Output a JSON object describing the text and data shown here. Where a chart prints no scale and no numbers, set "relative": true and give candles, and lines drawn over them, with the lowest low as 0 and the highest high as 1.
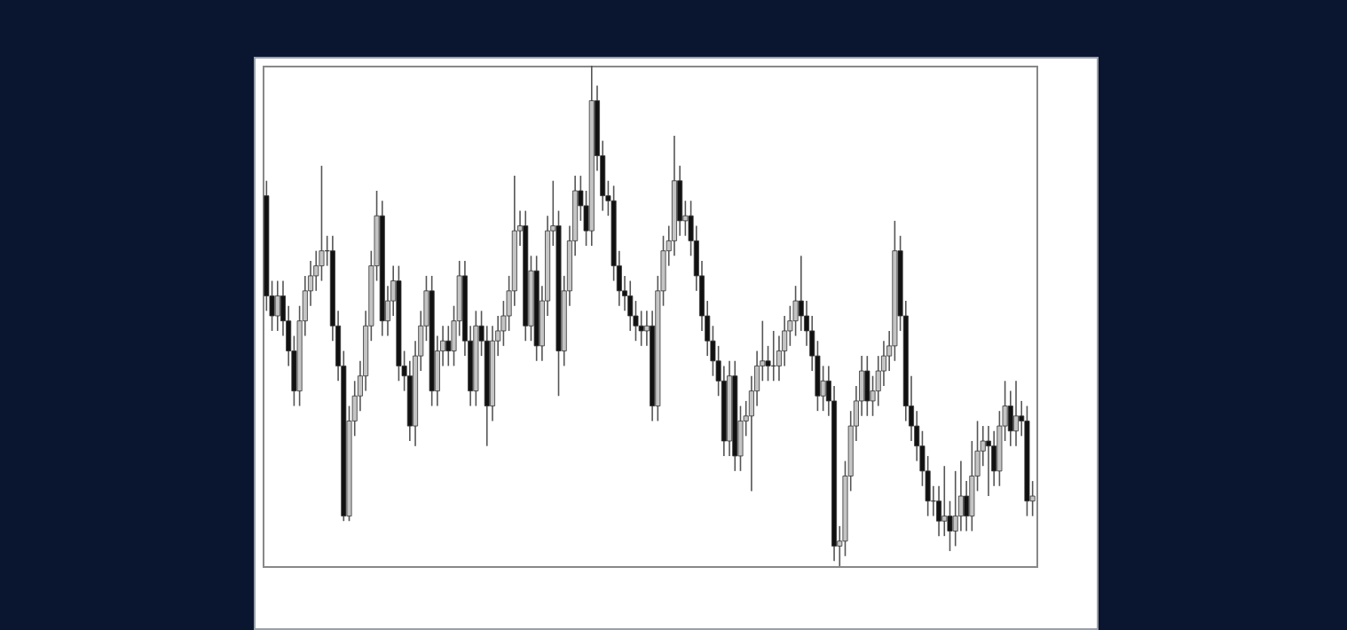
{
  "chart_data": {
    "type": "candlestick",
    "relative": true,
    "categories": [
      null,
      null,
      null,
      null,
      null,
      null,
      null,
      null,
      null,
      null,
      null,
      null,
      null,
      null,
      null,
      null,
      null,
      null,
      null,
      null,
      null,
      null,
      null,
      null,
      null,
      null,
      null,
      null,
      null,
      null,
      null,
      null,
      null,
      null,
      null,
      null,
      null,
      null,
      null,
      null,
      null,
      null,
      null,
      null,
      null,
      null,
      null,
      null,
      null,
      null,
      null,
      null,
      null,
      null,
      null,
      null,
      null,
      null,
      null,
      null,
      null,
      null,
      null,
      null,
      null,
      null,
      null,
      null,
      null,
      null,
      null,
      null,
      null,
      null,
      null,
      null,
      null,
      null,
      null,
      null,
      null,
      null,
      null,
      null,
      null,
      null,
      null,
      null,
      null,
      null,
      null,
      null,
      null,
      null,
      null,
      null,
      null,
      null,
      null,
      null,
      null,
      null,
      null,
      null,
      null,
      null,
      null,
      null,
      null,
      null,
      null,
      null,
      null,
      null,
      null,
      null,
      null,
      null,
      null,
      null,
      null,
      null,
      null,
      null,
      null,
      null,
      null,
      null,
      null,
      null,
      null,
      null,
      null,
      null,
      null,
      null,
      null,
      null,
      null,
      null
    ],
    "ohlc": [
      [
        0.74,
        0.77,
        0.51,
        0.54
      ],
      [
        0.54,
        0.57,
        0.47,
        0.5
      ],
      [
        0.5,
        0.57,
        0.47,
        0.54
      ],
      [
        0.54,
        0.57,
        0.46,
        0.49
      ],
      [
        0.49,
        0.52,
        0.4,
        0.43
      ],
      [
        0.43,
        0.46,
        0.32,
        0.35
      ],
      [
        0.35,
        0.52,
        0.32,
        0.49
      ],
      [
        0.49,
        0.58,
        0.46,
        0.55
      ],
      [
        0.55,
        0.61,
        0.52,
        0.58
      ],
      [
        0.58,
        0.63,
        0.55,
        0.6
      ],
      [
        0.6,
        0.8,
        0.57,
        0.63
      ],
      [
        0.63,
        0.66,
        0.6,
        0.63
      ],
      [
        0.63,
        0.66,
        0.45,
        0.48
      ],
      [
        0.48,
        0.51,
        0.37,
        0.4
      ],
      [
        0.4,
        0.43,
        0.09,
        0.1
      ],
      [
        0.1,
        0.32,
        0.09,
        0.29
      ],
      [
        0.29,
        0.37,
        0.26,
        0.34
      ],
      [
        0.34,
        0.41,
        0.31,
        0.38
      ],
      [
        0.38,
        0.51,
        0.35,
        0.48
      ],
      [
        0.48,
        0.63,
        0.45,
        0.6
      ],
      [
        0.6,
        0.75,
        0.57,
        0.7
      ],
      [
        0.7,
        0.73,
        0.46,
        0.49
      ],
      [
        0.49,
        0.56,
        0.46,
        0.53
      ],
      [
        0.53,
        0.6,
        0.5,
        0.57
      ],
      [
        0.57,
        0.6,
        0.37,
        0.4
      ],
      [
        0.4,
        0.43,
        0.35,
        0.38
      ],
      [
        0.38,
        0.41,
        0.25,
        0.28
      ],
      [
        0.28,
        0.45,
        0.24,
        0.42
      ],
      [
        0.42,
        0.51,
        0.39,
        0.48
      ],
      [
        0.48,
        0.58,
        0.45,
        0.55
      ],
      [
        0.55,
        0.58,
        0.32,
        0.35
      ],
      [
        0.35,
        0.46,
        0.32,
        0.43
      ],
      [
        0.43,
        0.48,
        0.4,
        0.45
      ],
      [
        0.45,
        0.48,
        0.4,
        0.43
      ],
      [
        0.43,
        0.52,
        0.4,
        0.49
      ],
      [
        0.49,
        0.61,
        0.46,
        0.58
      ],
      [
        0.58,
        0.61,
        0.42,
        0.45
      ],
      [
        0.45,
        0.48,
        0.32,
        0.35
      ],
      [
        0.35,
        0.51,
        0.32,
        0.48
      ],
      [
        0.48,
        0.51,
        0.42,
        0.45
      ],
      [
        0.45,
        0.48,
        0.24,
        0.32
      ],
      [
        0.32,
        0.48,
        0.29,
        0.45
      ],
      [
        0.45,
        0.5,
        0.42,
        0.47
      ],
      [
        0.47,
        0.53,
        0.44,
        0.5
      ],
      [
        0.5,
        0.58,
        0.47,
        0.55
      ],
      [
        0.55,
        0.78,
        0.52,
        0.67
      ],
      [
        0.67,
        0.71,
        0.64,
        0.68
      ],
      [
        0.68,
        0.71,
        0.45,
        0.48
      ],
      [
        0.48,
        0.62,
        0.45,
        0.59
      ],
      [
        0.59,
        0.62,
        0.41,
        0.44
      ],
      [
        0.44,
        0.56,
        0.41,
        0.53
      ],
      [
        0.53,
        0.7,
        0.5,
        0.67
      ],
      [
        0.67,
        0.77,
        0.64,
        0.68
      ],
      [
        0.68,
        0.71,
        0.34,
        0.43
      ],
      [
        0.43,
        0.58,
        0.4,
        0.55
      ],
      [
        0.55,
        0.68,
        0.52,
        0.65
      ],
      [
        0.65,
        0.78,
        0.62,
        0.75
      ],
      [
        0.75,
        0.78,
        0.69,
        0.72
      ],
      [
        0.72,
        0.75,
        0.64,
        0.67
      ],
      [
        0.67,
        1,
        0.64,
        0.93
      ],
      [
        0.93,
        0.96,
        0.79,
        0.82
      ],
      [
        0.82,
        0.85,
        0.71,
        0.74
      ],
      [
        0.74,
        0.77,
        0.7,
        0.73
      ],
      [
        0.73,
        0.76,
        0.57,
        0.6
      ],
      [
        0.6,
        0.63,
        0.52,
        0.55
      ],
      [
        0.55,
        0.58,
        0.51,
        0.54
      ],
      [
        0.54,
        0.57,
        0.47,
        0.5
      ],
      [
        0.5,
        0.53,
        0.45,
        0.48
      ],
      [
        0.48,
        0.51,
        0.44,
        0.47
      ],
      [
        0.47,
        0.51,
        0.44,
        0.48
      ],
      [
        0.48,
        0.51,
        0.29,
        0.32
      ],
      [
        0.32,
        0.58,
        0.29,
        0.55
      ],
      [
        0.55,
        0.66,
        0.52,
        0.63
      ],
      [
        0.63,
        0.68,
        0.6,
        0.65
      ],
      [
        0.65,
        0.86,
        0.62,
        0.77
      ],
      [
        0.77,
        0.8,
        0.66,
        0.69
      ],
      [
        0.69,
        0.73,
        0.66,
        0.7
      ],
      [
        0.7,
        0.73,
        0.62,
        0.65
      ],
      [
        0.65,
        0.68,
        0.55,
        0.58
      ],
      [
        0.58,
        0.61,
        0.47,
        0.5
      ],
      [
        0.5,
        0.53,
        0.42,
        0.45
      ],
      [
        0.45,
        0.48,
        0.38,
        0.41
      ],
      [
        0.41,
        0.44,
        0.34,
        0.37
      ],
      [
        0.37,
        0.4,
        0.22,
        0.25
      ],
      [
        0.25,
        0.41,
        0.22,
        0.38
      ],
      [
        0.38,
        0.41,
        0.19,
        0.22
      ],
      [
        0.22,
        0.32,
        0.19,
        0.29
      ],
      [
        0.29,
        0.33,
        0.26,
        0.3
      ],
      [
        0.3,
        0.38,
        0.15,
        0.35
      ],
      [
        0.35,
        0.43,
        0.32,
        0.4
      ],
      [
        0.4,
        0.49,
        0.37,
        0.41
      ],
      [
        0.41,
        0.44,
        0.37,
        0.4
      ],
      [
        0.4,
        0.47,
        0.37,
        0.4
      ],
      [
        0.4,
        0.46,
        0.37,
        0.43
      ],
      [
        0.43,
        0.5,
        0.4,
        0.47
      ],
      [
        0.47,
        0.52,
        0.44,
        0.49
      ],
      [
        0.49,
        0.56,
        0.46,
        0.53
      ],
      [
        0.53,
        0.62,
        0.47,
        0.5
      ],
      [
        0.5,
        0.53,
        0.44,
        0.47
      ],
      [
        0.47,
        0.5,
        0.39,
        0.42
      ],
      [
        0.42,
        0.45,
        0.31,
        0.34
      ],
      [
        0.34,
        0.4,
        0.31,
        0.37
      ],
      [
        0.37,
        0.4,
        0.3,
        0.33
      ],
      [
        0.33,
        0.36,
        0.01,
        0.04
      ],
      [
        0.04,
        0.08,
        0,
        0.05
      ],
      [
        0.05,
        0.21,
        0.02,
        0.18
      ],
      [
        0.18,
        0.31,
        0.15,
        0.28
      ],
      [
        0.28,
        0.36,
        0.25,
        0.33
      ],
      [
        0.33,
        0.42,
        0.3,
        0.39
      ],
      [
        0.39,
        0.42,
        0.3,
        0.33
      ],
      [
        0.33,
        0.38,
        0.3,
        0.35
      ],
      [
        0.35,
        0.42,
        0.32,
        0.39
      ],
      [
        0.39,
        0.45,
        0.36,
        0.42
      ],
      [
        0.42,
        0.47,
        0.39,
        0.44
      ],
      [
        0.44,
        0.69,
        0.41,
        0.63
      ],
      [
        0.63,
        0.66,
        0.47,
        0.5
      ],
      [
        0.5,
        0.53,
        0.29,
        0.32
      ],
      [
        0.32,
        0.38,
        0.25,
        0.28
      ],
      [
        0.28,
        0.31,
        0.21,
        0.24
      ],
      [
        0.24,
        0.27,
        0.16,
        0.19
      ],
      [
        0.19,
        0.22,
        0.1,
        0.13
      ],
      [
        0.13,
        0.16,
        0.1,
        0.13
      ],
      [
        0.13,
        0.16,
        0.06,
        0.09
      ],
      [
        0.09,
        0.2,
        0.06,
        0.1
      ],
      [
        0.1,
        0.13,
        0.03,
        0.07
      ],
      [
        0.07,
        0.19,
        0.04,
        0.1
      ],
      [
        0.1,
        0.21,
        0.07,
        0.14
      ],
      [
        0.14,
        0.17,
        0.07,
        0.1
      ],
      [
        0.1,
        0.25,
        0.07,
        0.18
      ],
      [
        0.18,
        0.29,
        0.15,
        0.23
      ],
      [
        0.23,
        0.28,
        0.2,
        0.25
      ],
      [
        0.25,
        0.28,
        0.14,
        0.24
      ],
      [
        0.24,
        0.27,
        0.16,
        0.19
      ],
      [
        0.19,
        0.31,
        0.16,
        0.28
      ],
      [
        0.28,
        0.37,
        0.25,
        0.32
      ],
      [
        0.32,
        0.35,
        0.24,
        0.27
      ],
      [
        0.27,
        0.37,
        0.24,
        0.3
      ],
      [
        0.3,
        0.33,
        0.26,
        0.29
      ],
      [
        0.29,
        0.32,
        0.1,
        0.13
      ],
      [
        0.13,
        0.17,
        0.1,
        0.14
      ]
    ]
  }
}
